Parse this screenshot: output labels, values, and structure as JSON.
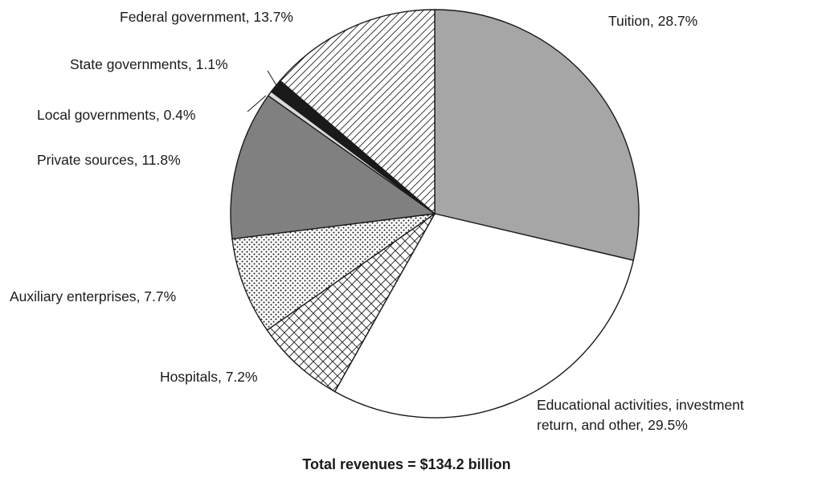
{
  "chart_data": {
    "type": "pie",
    "title": "",
    "footer": "Total revenues = $134.2 billion",
    "start_angle_deg": 0,
    "direction": "clockwise",
    "slices": [
      {
        "label": "Tuition",
        "value": 28.7,
        "display": "Tuition, 28.7%",
        "fill": "#a6a6a6",
        "pattern": "solid"
      },
      {
        "label": "Educational activities, investment return, and other",
        "value": 29.5,
        "display_lines": [
          "Educational activities, investment",
          "return, and other, 29.5%"
        ],
        "fill": "#ffffff",
        "pattern": "solid"
      },
      {
        "label": "Hospitals",
        "value": 7.2,
        "display": "Hospitals, 7.2%",
        "fill": "#ffffff",
        "pattern": "crosshatch"
      },
      {
        "label": "Auxiliary enterprises",
        "value": 7.7,
        "display": "Auxiliary enterprises, 7.7%",
        "fill": "#ffffff",
        "pattern": "dots"
      },
      {
        "label": "Private sources",
        "value": 11.8,
        "display": "Private sources, 11.8%",
        "fill": "#808080",
        "pattern": "solid"
      },
      {
        "label": "Local governments",
        "value": 0.4,
        "display": "Local governments, 0.4%",
        "fill": "#d9d9d9",
        "pattern": "solid"
      },
      {
        "label": "State governments",
        "value": 1.1,
        "display": "State governments, 1.1%",
        "fill": "#1a1a1a",
        "pattern": "solid"
      },
      {
        "label": "Federal government",
        "value": 13.7,
        "display": "Federal government, 13.7%",
        "fill": "#ffffff",
        "pattern": "diagonal"
      }
    ]
  }
}
